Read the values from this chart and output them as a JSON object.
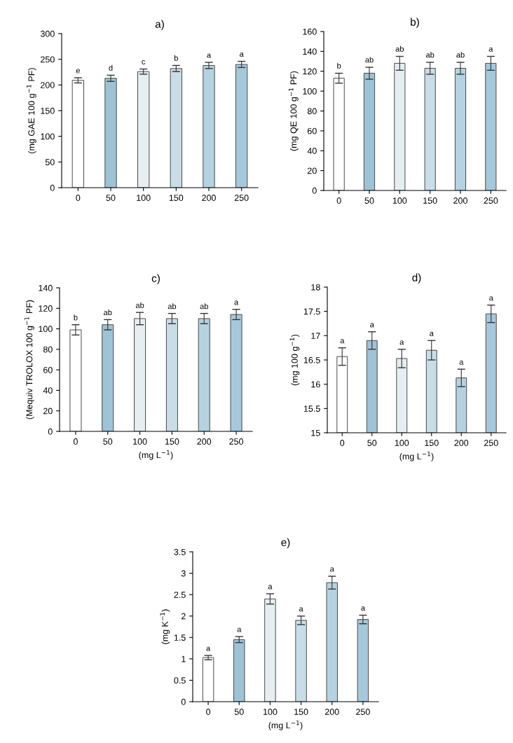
{
  "chart_data": [
    {
      "type": "bar",
      "title": "a)",
      "ylabel": "(mg GAE 100 g$^{−1}$ PF)",
      "categories": [
        "0",
        "50",
        "100",
        "150",
        "200",
        "250"
      ],
      "values": [
        209,
        213,
        226,
        232,
        238,
        240
      ],
      "errors": [
        5,
        6,
        5,
        6,
        6,
        6
      ],
      "value_labels": [
        "e",
        "d",
        "c",
        "b",
        "a",
        "a"
      ],
      "colors": [
        "#ffffff",
        "#9fc3d6",
        "#e6eef2",
        "#c9dde8",
        "#b6d2e0",
        "#a6c8da"
      ],
      "ylim": [
        0,
        300
      ],
      "yticks": [
        0,
        50,
        100,
        150,
        200,
        250,
        300
      ],
      "grid": false,
      "legend": false
    },
    {
      "type": "bar",
      "title": "b)",
      "ylabel": "(mg QE 100 g$^{−1}$ PF)",
      "categories": [
        "0",
        "50",
        "100",
        "150",
        "200",
        "250"
      ],
      "values": [
        113,
        118,
        128,
        123,
        123,
        128
      ],
      "errors": [
        5,
        6,
        7,
        6,
        6,
        7
      ],
      "value_labels": [
        "b",
        "ab",
        "ab",
        "ab",
        "ab",
        "a"
      ],
      "colors": [
        "#ffffff",
        "#9fc3d6",
        "#e6eef2",
        "#c9dde8",
        "#b6d2e0",
        "#a6c8da"
      ],
      "ylim": [
        0,
        160
      ],
      "yticks": [
        0,
        20,
        40,
        60,
        80,
        100,
        120,
        140,
        160
      ],
      "grid": false,
      "legend": false
    },
    {
      "type": "bar",
      "title": "c)",
      "ylabel": "(Mequiv TROLOX 100 g$^{−1}$ PF)",
      "xlabel": "(mg L$^{−1}$)",
      "categories": [
        "0",
        "50",
        "100",
        "150",
        "200",
        "250"
      ],
      "values": [
        99,
        104,
        110,
        110,
        110,
        114
      ],
      "errors": [
        5,
        5,
        6,
        5,
        5,
        5
      ],
      "value_labels": [
        "b",
        "ab",
        "ab",
        "ab",
        "ab",
        "a"
      ],
      "colors": [
        "#ffffff",
        "#9fc3d6",
        "#e6eef2",
        "#c9dde8",
        "#b6d2e0",
        "#a6c8da"
      ],
      "ylim": [
        0,
        140
      ],
      "yticks": [
        0,
        20,
        40,
        60,
        80,
        100,
        120,
        140
      ],
      "grid": false,
      "legend": false
    },
    {
      "type": "bar",
      "title": "d)",
      "ylabel": "(mg 100 g$^{−1}$)",
      "xlabel": "(mg L$^{−1}$)",
      "categories": [
        "0",
        "50",
        "100",
        "150",
        "200",
        "250"
      ],
      "values": [
        16.57,
        16.9,
        16.53,
        16.7,
        16.13,
        17.45
      ],
      "errors": [
        0.18,
        0.18,
        0.19,
        0.2,
        0.18,
        0.18
      ],
      "value_labels": [
        "a",
        "a",
        "a",
        "a",
        "a",
        "a"
      ],
      "colors": [
        "#ffffff",
        "#9fc3d6",
        "#e6eef2",
        "#c9dde8",
        "#b6d2e0",
        "#a6c8da"
      ],
      "ylim": [
        15,
        18
      ],
      "yticks": [
        15,
        15.5,
        16,
        16.5,
        17,
        17.5,
        18
      ],
      "grid": false,
      "legend": false
    },
    {
      "type": "bar",
      "title": "e)",
      "ylabel": "(mg K$^{−1}$)",
      "xlabel": "(mg L$^{−1}$)",
      "categories": [
        "0",
        "50",
        "100",
        "150",
        "200",
        "250"
      ],
      "values": [
        1.03,
        1.45,
        2.4,
        1.9,
        2.78,
        1.92
      ],
      "errors": [
        0.05,
        0.07,
        0.12,
        0.1,
        0.15,
        0.1
      ],
      "value_labels": [
        "a",
        "a",
        "a",
        "a",
        "a",
        "a"
      ],
      "colors": [
        "#ffffff",
        "#9fc3d6",
        "#e6eef2",
        "#c9dde8",
        "#b6d2e0",
        "#a6c8da"
      ],
      "ylim": [
        0,
        3.5
      ],
      "yticks": [
        0,
        0.5,
        1,
        1.5,
        2,
        2.5,
        3,
        3.5
      ],
      "grid": false,
      "legend": false
    }
  ]
}
